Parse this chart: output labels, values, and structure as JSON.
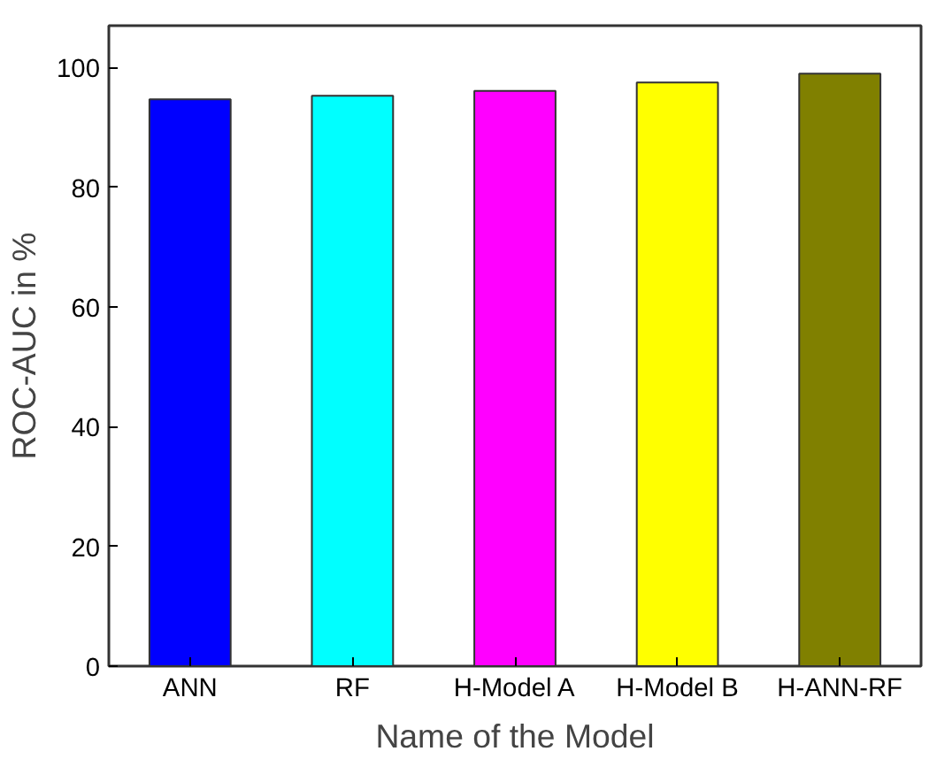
{
  "chart_data": {
    "type": "bar",
    "xlabel": "Name of the Model",
    "ylabel": "ROC-AUC in %",
    "categories": [
      "ANN",
      "RF",
      "H-Model A",
      "H-Model B",
      "H-ANN-RF"
    ],
    "values": [
      94.7,
      95.3,
      96.1,
      97.5,
      99.0
    ],
    "colors": [
      "#0000ff",
      "#00ffff",
      "#ff00ff",
      "#ffff00",
      "#808000"
    ],
    "ylim": [
      0,
      107
    ],
    "yticks": [
      0,
      20,
      40,
      60,
      80,
      100
    ],
    "grid": false
  }
}
